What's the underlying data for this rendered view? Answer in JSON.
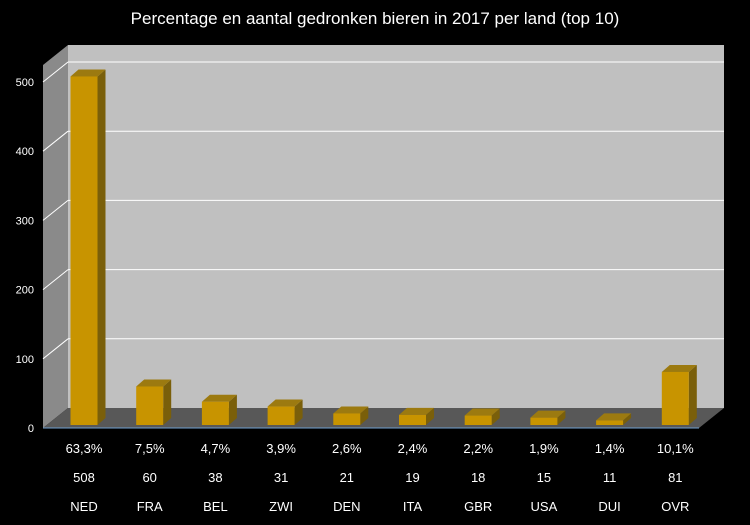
{
  "chart_data": {
    "type": "bar",
    "title": "Percentage en aantal gedronken bieren in 2017 per land (top 10)",
    "xlabel": "",
    "ylabel": "",
    "ylim": [
      0,
      500
    ],
    "yticks": [
      0,
      100,
      200,
      300,
      400,
      500
    ],
    "grid": true,
    "categories": [
      "NED",
      "FRA",
      "BEL",
      "ZWI",
      "DEN",
      "ITA",
      "GBR",
      "USA",
      "DUI",
      "OVR"
    ],
    "percentages": [
      "63,3%",
      "7,5%",
      "4,7%",
      "3,9%",
      "2,6%",
      "2,4%",
      "2,2%",
      "1,9%",
      "1,4%",
      "10,1%"
    ],
    "values": [
      508,
      60,
      38,
      31,
      21,
      19,
      18,
      15,
      11,
      81
    ],
    "colors": {
      "bar_front": "#c89400",
      "bar_side": "#7a5f0a",
      "bar_top": "#9c7a10",
      "wall": "#c0c0c0",
      "left_wall": "#8a8a8a",
      "floor": "#585858",
      "gridline": "#ffffff",
      "background": "#000000"
    }
  }
}
